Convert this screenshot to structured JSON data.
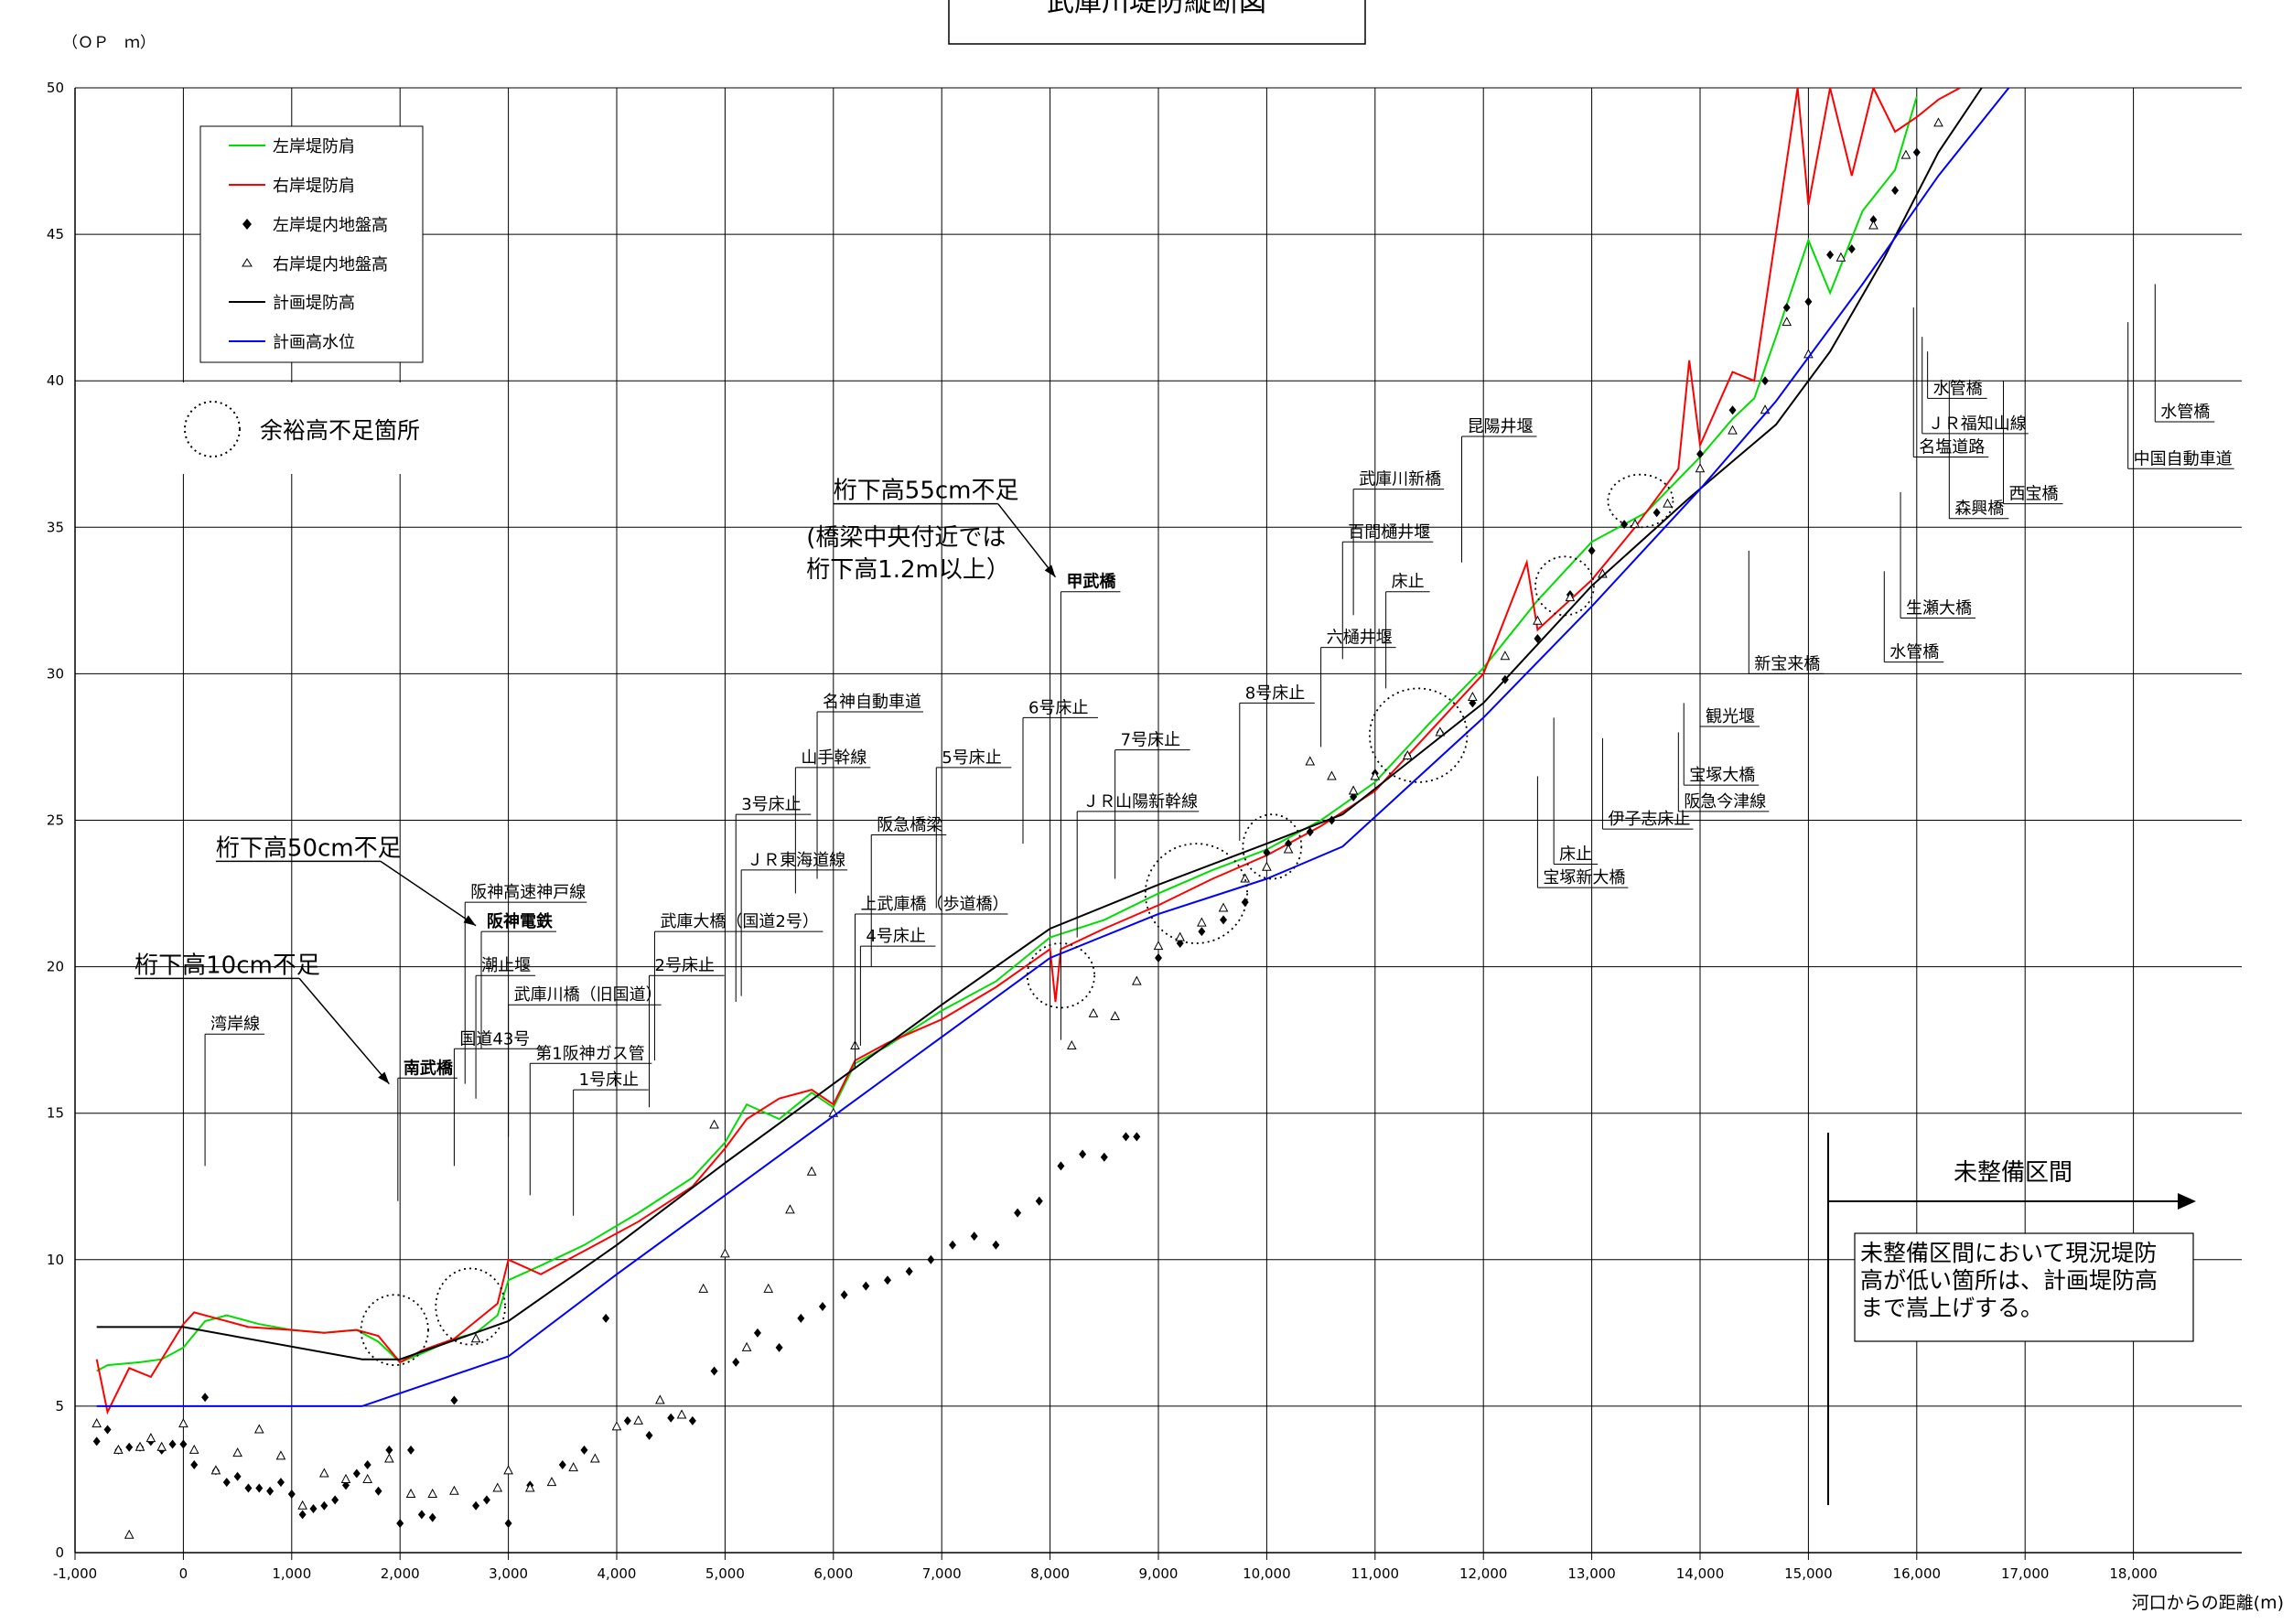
{
  "chart_data": {
    "type": "line",
    "title": "武庫川堤防縦断図",
    "ylabel": "（ＯＰ　ｍ）",
    "xlabel": "河口からの距離(m)",
    "xlim": [
      -1000,
      19000
    ],
    "ylim": [
      0,
      50
    ],
    "grid": true,
    "x_ticks": [
      -1000,
      0,
      1000,
      2000,
      3000,
      4000,
      5000,
      6000,
      7000,
      8000,
      9000,
      10000,
      11000,
      12000,
      13000,
      14000,
      15000,
      16000,
      17000,
      18000
    ],
    "x_tick_labels": [
      "-1,000",
      "0",
      "1,000",
      "2,000",
      "3,000",
      "4,000",
      "5,000",
      "6,000",
      "7,000",
      "8,000",
      "9,000",
      "10,000",
      "11,000",
      "12,000",
      "13,000",
      "14,000",
      "15,000",
      "16,000",
      "17,000",
      "18,000"
    ],
    "y_ticks": [
      0,
      5,
      10,
      15,
      20,
      25,
      30,
      35,
      40,
      45,
      50
    ],
    "legend_placement": "top-left",
    "series": [
      {
        "name": "左岸堤防肩",
        "color": "#00dd00",
        "style": "line",
        "x": [
          -800,
          -700,
          -400,
          -200,
          0,
          200,
          400,
          700,
          1000,
          1300,
          1600,
          1800,
          2000,
          2200,
          2500,
          2700,
          2900,
          3000,
          3300,
          3700,
          4200,
          4700,
          5000,
          5200,
          5500,
          5800,
          6000,
          6200,
          6500,
          7000,
          7500,
          8000,
          8500,
          9000,
          9500,
          10000,
          10500,
          11000,
          11500,
          12000,
          12500,
          13000,
          13500,
          14000,
          14300,
          14500,
          14700,
          15000,
          15200,
          15500,
          15800,
          16000
        ],
        "y": [
          6.2,
          6.4,
          6.5,
          6.6,
          7.0,
          7.9,
          8.1,
          7.8,
          7.6,
          7.5,
          7.6,
          7.2,
          6.5,
          6.8,
          7.3,
          7.5,
          8.1,
          9.3,
          9.8,
          10.5,
          11.6,
          12.8,
          14.0,
          15.3,
          14.8,
          15.7,
          15.2,
          16.7,
          17.3,
          18.5,
          19.5,
          21.0,
          21.6,
          22.5,
          23.3,
          24.0,
          25.0,
          26.3,
          28.3,
          30.2,
          32.5,
          34.5,
          35.5,
          37.4,
          38.7,
          39.4,
          41.5,
          44.8,
          43.0,
          45.8,
          47.2,
          49.7
        ]
      },
      {
        "name": "右岸堤防肩",
        "color": "#ff0000",
        "style": "line",
        "x": [
          -800,
          -700,
          -500,
          -300,
          0,
          100,
          300,
          600,
          1000,
          1300,
          1600,
          1800,
          2000,
          2200,
          2500,
          2700,
          2900,
          3000,
          3300,
          3700,
          4200,
          4700,
          5000,
          5200,
          5500,
          5800,
          6000,
          6200,
          6500,
          7000,
          7500,
          8000,
          8050,
          8100,
          8500,
          9000,
          9500,
          10000,
          10500,
          11000,
          11500,
          12000,
          12400,
          12500,
          13000,
          13400,
          13800,
          13900,
          14000,
          14300,
          14500,
          14700,
          14900,
          15000,
          15200,
          15400,
          15600,
          15800,
          16000,
          16200,
          16400
        ],
        "y": [
          6.6,
          4.8,
          6.3,
          6.0,
          7.8,
          8.2,
          8.0,
          7.7,
          7.6,
          7.5,
          7.6,
          7.4,
          6.5,
          6.9,
          7.3,
          7.9,
          8.5,
          10.0,
          9.5,
          10.3,
          11.3,
          12.5,
          13.8,
          14.8,
          15.5,
          15.8,
          15.3,
          16.8,
          17.4,
          18.2,
          19.3,
          20.6,
          18.8,
          20.6,
          21.3,
          22.1,
          23.0,
          23.8,
          24.8,
          26.0,
          28.0,
          30.0,
          33.8,
          31.5,
          33.2,
          35.0,
          37.0,
          40.7,
          37.8,
          40.3,
          40.0,
          45.0,
          50.0,
          46.0,
          50.0,
          47.0,
          50.0,
          48.5,
          49.0,
          49.6,
          50.0
        ]
      },
      {
        "name": "左岸堤内地盤高",
        "color": "#000000",
        "style": "marker-diamond",
        "x": [
          -800,
          -700,
          -600,
          -500,
          -400,
          -300,
          -200,
          -100,
          0,
          100,
          200,
          300,
          400,
          500,
          600,
          700,
          800,
          900,
          1000,
          1100,
          1200,
          1300,
          1400,
          1500,
          1600,
          1700,
          1800,
          1900,
          2000,
          2100,
          2200,
          2300,
          2500,
          2700,
          2800,
          3000,
          3200,
          3500,
          3700,
          3900,
          4100,
          4300,
          4500,
          4700,
          4900,
          5100,
          5300,
          5500,
          5700,
          5900,
          6100,
          6300,
          6500,
          6700,
          6900,
          7100,
          7300,
          7500,
          7700,
          7900,
          8100,
          8300,
          8500,
          8700,
          8800,
          9000,
          9200,
          9400,
          9600,
          9800,
          10000,
          10200,
          10400,
          10600,
          10800,
          11000,
          11300,
          11600,
          11900,
          12200,
          12500,
          12800,
          13000,
          13300,
          13600,
          14000,
          14300,
          14600,
          14800,
          15000,
          15200,
          15400,
          15600,
          15800,
          16000
        ],
        "y": [
          3.8,
          4.2,
          3.5,
          3.6,
          3.6,
          3.8,
          3.5,
          3.7,
          3.7,
          3.0,
          5.3,
          2.8,
          2.4,
          2.6,
          2.2,
          2.2,
          2.1,
          2.4,
          2.0,
          1.3,
          1.5,
          1.6,
          1.8,
          2.3,
          2.7,
          3.0,
          2.1,
          3.5,
          1.0,
          3.5,
          1.3,
          1.2,
          5.2,
          1.6,
          1.8,
          1.0,
          2.3,
          3.0,
          3.5,
          8.0,
          4.5,
          4.0,
          4.6,
          4.5,
          6.2,
          6.5,
          7.5,
          7.0,
          8.0,
          8.4,
          8.8,
          9.1,
          9.3,
          9.6,
          10.0,
          10.5,
          10.8,
          10.5,
          11.6,
          12.0,
          13.2,
          13.6,
          13.5,
          14.2,
          14.2,
          20.3,
          20.8,
          21.2,
          21.6,
          22.2,
          23.9,
          24.2,
          24.6,
          25.0,
          25.8,
          26.6,
          27.2,
          28.0,
          29.0,
          29.8,
          31.2,
          32.7,
          34.2,
          35.1,
          35.5,
          37.5,
          39.0,
          40.0,
          42.5,
          42.7,
          44.3,
          44.5,
          45.5,
          46.5,
          47.8
        ]
      },
      {
        "name": "右岸堤内地盤高",
        "color": "#000000",
        "style": "marker-triangle",
        "x": [
          -800,
          -600,
          -500,
          -400,
          -300,
          -200,
          0,
          100,
          300,
          500,
          700,
          900,
          1100,
          1300,
          1500,
          1700,
          1900,
          2100,
          2300,
          2500,
          2700,
          2900,
          3000,
          3200,
          3400,
          3600,
          3800,
          4000,
          4200,
          4400,
          4600,
          4800,
          4900,
          5000,
          5200,
          5400,
          5600,
          5800,
          6000,
          6200,
          8200,
          8400,
          8600,
          8800,
          9000,
          9200,
          9400,
          9600,
          9800,
          10000,
          10200,
          10400,
          10600,
          10800,
          11000,
          11300,
          11600,
          11900,
          12200,
          12500,
          12800,
          13100,
          13400,
          13700,
          14000,
          14300,
          14600,
          14800,
          15000,
          15300,
          15600,
          15900,
          16200
        ],
        "y": [
          4.4,
          3.5,
          0.6,
          3.6,
          3.9,
          3.6,
          4.4,
          3.5,
          2.8,
          3.4,
          4.2,
          3.3,
          1.6,
          2.7,
          2.5,
          2.5,
          3.2,
          2.0,
          2.0,
          2.1,
          7.3,
          2.2,
          2.8,
          2.2,
          2.4,
          2.9,
          3.2,
          4.3,
          4.5,
          5.2,
          4.7,
          9.0,
          14.6,
          10.2,
          7.0,
          9.0,
          11.7,
          13.0,
          15.0,
          17.3,
          17.3,
          18.4,
          18.3,
          19.5,
          20.7,
          21.0,
          21.5,
          22.0,
          23.0,
          23.4,
          24.0,
          27.0,
          26.5,
          26.0,
          26.5,
          27.2,
          28.0,
          29.2,
          30.6,
          31.8,
          32.6,
          33.4,
          35.1,
          35.8,
          37.0,
          38.3,
          39.0,
          42.0,
          40.9,
          44.2,
          45.3,
          47.7,
          48.8
        ]
      },
      {
        "name": "計画堤防高",
        "color": "#000000",
        "style": "line",
        "x": [
          -800,
          0,
          1650,
          2000,
          3000,
          4000,
          5000,
          6000,
          7000,
          8000,
          9000,
          10000,
          10700,
          12000,
          13000,
          13900,
          14700,
          15200,
          15700,
          16200,
          16600
        ],
        "y": [
          7.7,
          7.7,
          6.6,
          6.6,
          7.9,
          10.5,
          13.3,
          16.0,
          18.7,
          21.3,
          22.8,
          24.2,
          25.2,
          29.0,
          33.0,
          36.0,
          38.5,
          41.0,
          44.2,
          47.8,
          50.0
        ]
      },
      {
        "name": "計画高水位",
        "color": "#0000ff",
        "style": "line",
        "x": [
          -800,
          0,
          1650,
          3000,
          4000,
          5000,
          6000,
          7000,
          8000,
          9000,
          10000,
          10700,
          12000,
          13000,
          14000,
          14700,
          15500,
          16200,
          16850
        ],
        "y": [
          5.0,
          5.0,
          5.0,
          6.7,
          9.5,
          12.2,
          14.9,
          17.6,
          20.3,
          21.8,
          23.0,
          24.1,
          28.5,
          32.3,
          36.3,
          39.3,
          43.3,
          47.0,
          50.0
        ]
      }
    ],
    "deficiency_circles": [
      {
        "x": 1950,
        "y": 7.6,
        "rx": 310,
        "ry": 1.2
      },
      {
        "x": 2650,
        "y": 8.4,
        "rx": 320,
        "ry": 1.3
      },
      {
        "x": 8100,
        "y": 19.7,
        "rx": 310,
        "ry": 1.1
      },
      {
        "x": 9350,
        "y": 22.5,
        "rx": 470,
        "ry": 1.7
      },
      {
        "x": 10050,
        "y": 24.1,
        "rx": 270,
        "ry": 1.1
      },
      {
        "x": 11400,
        "y": 27.9,
        "rx": 450,
        "ry": 1.6
      },
      {
        "x": 12750,
        "y": 33.0,
        "rx": 270,
        "ry": 1.0
      },
      {
        "x": 13450,
        "y": 35.9,
        "rx": 300,
        "ry": 0.9
      }
    ],
    "feature_labels": [
      {
        "text": "湾岸線",
        "x": 200,
        "y": 17.7,
        "drop": 13.2,
        "bold": false
      },
      {
        "text": "南武橋",
        "x": 1980,
        "y": 16.2,
        "drop": 12.0,
        "bold": true
      },
      {
        "text": "国道43号",
        "x": 2500,
        "y": 17.2,
        "drop": 13.2,
        "bold": false
      },
      {
        "text": "阪神高速神戸線",
        "x": 2600,
        "y": 22.2,
        "drop": 16.0,
        "bold": false
      },
      {
        "text": "阪神電鉄",
        "x": 2750,
        "y": 21.2,
        "drop": 17.2,
        "bold": true
      },
      {
        "text": "潮止堰",
        "x": 2700,
        "y": 19.7,
        "drop": 15.5,
        "bold": false
      },
      {
        "text": "武庫川橋（旧国道）",
        "x": 3000,
        "y": 18.7,
        "drop": 14.2,
        "bold": false
      },
      {
        "text": "第1阪神ガス管",
        "x": 3200,
        "y": 16.7,
        "drop": 12.2,
        "bold": false
      },
      {
        "text": "1号床止",
        "x": 3600,
        "y": 15.8,
        "drop": 11.5,
        "bold": false
      },
      {
        "text": "武庫大橋（国道2号）",
        "x": 4350,
        "y": 21.2,
        "drop": 16.8,
        "bold": false
      },
      {
        "text": "2号床止",
        "x": 4300,
        "y": 19.7,
        "drop": 15.2,
        "bold": false
      },
      {
        "text": "3号床止",
        "x": 5100,
        "y": 25.2,
        "drop": 18.8,
        "bold": false
      },
      {
        "text": "ＪＲ東海道線",
        "x": 5150,
        "y": 23.3,
        "drop": 19.0,
        "bold": false
      },
      {
        "text": "山手幹線",
        "x": 5650,
        "y": 26.8,
        "drop": 22.5,
        "bold": false
      },
      {
        "text": "名神自動車道",
        "x": 5850,
        "y": 28.7,
        "drop": 23.0,
        "bold": false
      },
      {
        "text": "阪急橋梁",
        "x": 6350,
        "y": 24.5,
        "drop": 20.0,
        "bold": false
      },
      {
        "text": "上武庫橋（歩道橋）",
        "x": 6200,
        "y": 21.8,
        "drop": 16.5,
        "bold": false
      },
      {
        "text": "4号床止",
        "x": 6250,
        "y": 20.7,
        "drop": 17.3,
        "bold": false
      },
      {
        "text": "5号床止",
        "x": 6950,
        "y": 26.8,
        "drop": 22.0,
        "bold": false
      },
      {
        "text": "6号床止",
        "x": 7750,
        "y": 28.5,
        "drop": 24.2,
        "bold": false
      },
      {
        "text": "甲武橋",
        "x": 8100,
        "y": 32.8,
        "drop": 17.5,
        "bold": true
      },
      {
        "text": "ＪＲ山陽新幹線",
        "x": 8250,
        "y": 25.3,
        "drop": 21.0,
        "bold": false
      },
      {
        "text": "7号床止",
        "x": 8600,
        "y": 27.4,
        "drop": 23.0,
        "bold": false
      },
      {
        "text": "8号床止",
        "x": 9750,
        "y": 29.0,
        "drop": 24.3,
        "bold": false
      },
      {
        "text": "六樋井堰",
        "x": 10500,
        "y": 30.9,
        "drop": 27.5,
        "bold": false
      },
      {
        "text": "百間樋井堰",
        "x": 10700,
        "y": 34.5,
        "drop": 30.5,
        "bold": false
      },
      {
        "text": "武庫川新橋",
        "x": 10800,
        "y": 36.3,
        "drop": 32.0,
        "bold": false
      },
      {
        "text": "床止",
        "x": 11100,
        "y": 32.8,
        "drop": 29.5,
        "bold": false
      },
      {
        "text": "昆陽井堰",
        "x": 11800,
        "y": 38.1,
        "drop": 33.8,
        "bold": false
      },
      {
        "text": "床止",
        "x": 12650,
        "y": 23.5,
        "drop": 28.5,
        "bold": false
      },
      {
        "text": "宝塚新大橋",
        "x": 12500,
        "y": 22.7,
        "drop": 26.5,
        "bold": false
      },
      {
        "text": "伊子志床止",
        "x": 13100,
        "y": 24.7,
        "drop": 27.8,
        "bold": false
      },
      {
        "text": "観光堰",
        "x": 14000,
        "y": 28.2,
        "drop": 30.8,
        "bold": false
      },
      {
        "text": "宝塚大橋",
        "x": 13850,
        "y": 26.2,
        "drop": 29.0,
        "bold": false
      },
      {
        "text": "阪急今津線",
        "x": 13800,
        "y": 25.3,
        "drop": 28.0,
        "bold": false
      },
      {
        "text": "新宝来橋",
        "x": 14450,
        "y": 30.0,
        "drop": 34.2,
        "bold": false
      },
      {
        "text": "水管橋",
        "x": 15700,
        "y": 30.4,
        "drop": 33.5,
        "bold": false
      },
      {
        "text": "生瀬大橋",
        "x": 15850,
        "y": 31.9,
        "drop": 36.2,
        "bold": false
      },
      {
        "text": "森興橋",
        "x": 16300,
        "y": 35.3,
        "drop": 40.0,
        "bold": false
      },
      {
        "text": "西宝橋",
        "x": 16800,
        "y": 35.8,
        "drop": 40.0,
        "bold": false
      },
      {
        "text": "名塩道路",
        "x": 15970,
        "y": 37.4,
        "drop": 42.5,
        "bold": false
      },
      {
        "text": "ＪＲ福知山線",
        "x": 16050,
        "y": 38.2,
        "drop": 41.5,
        "bold": false
      },
      {
        "text": "水管橋",
        "x": 16100,
        "y": 39.4,
        "drop": 41.0,
        "bold": false
      },
      {
        "text": "中国自動車道",
        "x": 17950,
        "y": 37.0,
        "drop": 42.0,
        "bold": false
      },
      {
        "text": "水管橋",
        "x": 18200,
        "y": 38.6,
        "drop": 43.3,
        "bold": false
      }
    ],
    "annotations": [
      {
        "text": "桁下高10cm不足",
        "x": -450,
        "y": 19.6,
        "arrow_to": [
          1900,
          16.0
        ]
      },
      {
        "text": "桁下高50cm不足",
        "x": 300,
        "y": 23.6,
        "arrow_to": [
          2700,
          21.4
        ]
      },
      {
        "text": "桁下高55cm不足",
        "x": 6000,
        "y": 35.8,
        "arrow_to": [
          8050,
          33.3
        ]
      },
      {
        "text": "(橋梁中央付近では",
        "x": 5750,
        "y": 34.2,
        "arrow_to": null
      },
      {
        "text": "桁下高1.2m以上）",
        "x": 5750,
        "y": 33.1,
        "arrow_to": null
      }
    ],
    "unimproved_section": {
      "label": "未整備区間",
      "note": [
        "未整備区間において現況堤防",
        "高が低い箇所は、計画堤防高",
        "まで嵩上げする。"
      ]
    }
  },
  "legend": {
    "items": [
      "左岸堤防肩",
      "右岸堤防肩",
      "左岸堤内地盤高",
      "右岸堤内地盤高",
      "計画堤防高",
      "計画高水位"
    ],
    "circle_label": "余裕高不足箇所"
  }
}
